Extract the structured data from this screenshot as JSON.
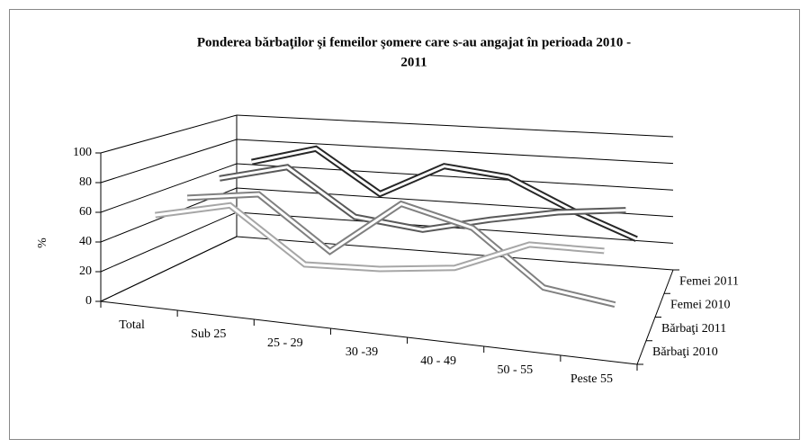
{
  "chart_data": {
    "type": "line3d",
    "title": [
      "Ponderea bărbaţilor şi femeilor şomere care s-au angajat în perioada 2010 -",
      "2011"
    ],
    "y_axis_label": "%",
    "categories": [
      "Total",
      "Sub 25",
      "25 - 29",
      "30 -39",
      "40 - 49",
      "50 - 55",
      "Peste 55"
    ],
    "series": [
      {
        "name": "Bărbaţi 2010",
        "color": "#a6a6a6",
        "values": [
          57,
          70,
          35,
          38,
          45,
          68,
          70
        ]
      },
      {
        "name": "Bărbaţi 2011",
        "color": "#808080",
        "values": [
          60,
          68,
          32,
          72,
          60,
          22,
          15
        ]
      },
      {
        "name": "Femei 2010",
        "color": "#595959",
        "values": [
          65,
          78,
          45,
          40,
          52,
          62,
          68
        ]
      },
      {
        "name": "Femei 2011",
        "color": "#262626",
        "values": [
          68,
          82,
          50,
          75,
          70,
          48,
          30
        ]
      }
    ],
    "ylim": [
      0,
      100
    ],
    "yticks": [
      0,
      20,
      40,
      60,
      80,
      100
    ],
    "grid": true
  }
}
